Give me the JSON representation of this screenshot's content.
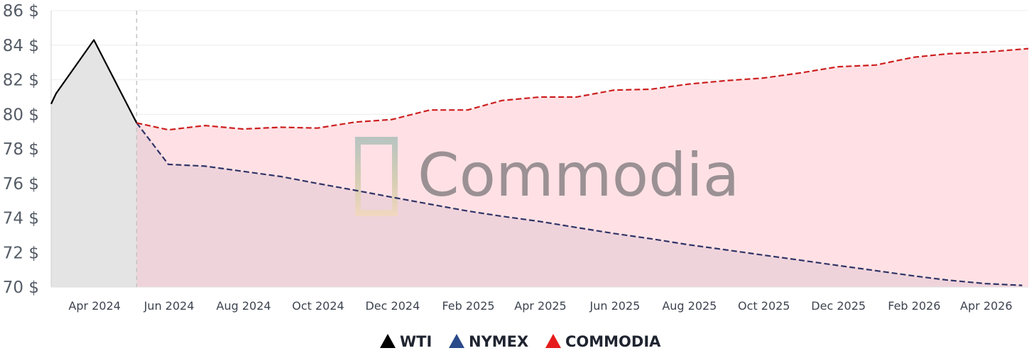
{
  "chart_data": {
    "type": "line",
    "y_unit": "$",
    "ylim": [
      70,
      86
    ],
    "y_ticks": [
      70,
      72,
      74,
      76,
      78,
      80,
      82,
      84,
      86
    ],
    "y_tick_labels": [
      "70 $",
      "72 $",
      "74 $",
      "76 $",
      "78 $",
      "80 $",
      "82 $",
      "84 $",
      "86 $"
    ],
    "x_ticks": [
      "2024-04",
      "2024-06",
      "2024-08",
      "2024-10",
      "2024-12",
      "2025-02",
      "2025-04",
      "2025-06",
      "2025-08",
      "2025-10",
      "2025-12",
      "2026-02",
      "2026-04"
    ],
    "x_tick_labels": [
      "Apr 2024",
      "Jun 2024",
      "Aug 2024",
      "Oct 2024",
      "Dec 2024",
      "Feb 2025",
      "Apr 2025",
      "Jun 2025",
      "Aug 2025",
      "Oct 2025",
      "Dec 2025",
      "Feb 2026",
      "Apr 2026"
    ],
    "xlim": [
      "2024-02-26",
      "2026-05-06"
    ],
    "forecast_start": "2024-05-06",
    "grid": "horizontal",
    "legend_position": "bottom-center",
    "series": [
      {
        "name": "WTI",
        "color": "#000000",
        "style": "solid",
        "fill": "#e4e4e4",
        "points": [
          [
            "2024-02-26",
            80.6
          ],
          [
            "2024-03-01",
            81.2
          ],
          [
            "2024-04-01",
            84.3
          ],
          [
            "2024-05-06",
            79.5
          ]
        ]
      },
      {
        "name": "NYMEX",
        "color": "#2f3466",
        "style": "dashed",
        "points": [
          [
            "2024-05-06",
            79.5
          ],
          [
            "2024-06-01",
            77.1
          ],
          [
            "2024-07-01",
            77.0
          ],
          [
            "2024-08-01",
            76.7
          ],
          [
            "2024-09-01",
            76.4
          ],
          [
            "2024-10-01",
            76.0
          ],
          [
            "2024-11-01",
            75.6
          ],
          [
            "2024-12-01",
            75.2
          ],
          [
            "2025-01-01",
            74.8
          ],
          [
            "2025-02-01",
            74.4
          ],
          [
            "2025-03-01",
            74.1
          ],
          [
            "2025-04-01",
            73.8
          ],
          [
            "2025-05-01",
            73.45
          ],
          [
            "2025-06-01",
            73.1
          ],
          [
            "2025-07-01",
            72.8
          ],
          [
            "2025-08-01",
            72.45
          ],
          [
            "2025-09-01",
            72.15
          ],
          [
            "2025-10-01",
            71.85
          ],
          [
            "2025-11-01",
            71.55
          ],
          [
            "2025-12-01",
            71.25
          ],
          [
            "2026-01-01",
            70.95
          ],
          [
            "2026-02-01",
            70.65
          ],
          [
            "2026-03-01",
            70.4
          ],
          [
            "2026-04-01",
            70.2
          ],
          [
            "2026-05-01",
            70.1
          ]
        ]
      },
      {
        "name": "COMMODIA",
        "color": "#cc1f1f",
        "style": "dashed",
        "fill": "#ffe1e5",
        "points": [
          [
            "2024-05-06",
            79.5
          ],
          [
            "2024-06-01",
            79.1
          ],
          [
            "2024-07-01",
            79.35
          ],
          [
            "2024-08-01",
            79.15
          ],
          [
            "2024-09-01",
            79.25
          ],
          [
            "2024-10-01",
            79.2
          ],
          [
            "2024-11-01",
            79.55
          ],
          [
            "2024-12-01",
            79.7
          ],
          [
            "2025-01-01",
            80.25
          ],
          [
            "2025-02-01",
            80.25
          ],
          [
            "2025-03-01",
            80.8
          ],
          [
            "2025-04-01",
            81.0
          ],
          [
            "2025-05-01",
            81.0
          ],
          [
            "2025-06-01",
            81.4
          ],
          [
            "2025-07-01",
            81.45
          ],
          [
            "2025-08-01",
            81.75
          ],
          [
            "2025-09-01",
            81.95
          ],
          [
            "2025-10-01",
            82.1
          ],
          [
            "2025-11-01",
            82.4
          ],
          [
            "2025-12-01",
            82.75
          ],
          [
            "2026-01-01",
            82.85
          ],
          [
            "2026-02-01",
            83.3
          ],
          [
            "2026-03-01",
            83.5
          ],
          [
            "2026-04-01",
            83.6
          ],
          [
            "2026-05-06",
            83.8
          ]
        ]
      }
    ]
  },
  "watermark": {
    "text": "Commodia",
    "logo_colors": [
      "#9fbab6",
      "#c8c7a4",
      "#f3d9b8"
    ]
  }
}
